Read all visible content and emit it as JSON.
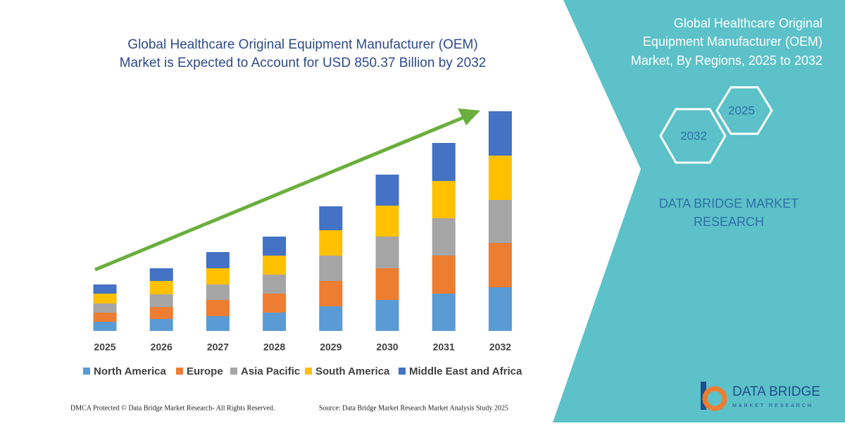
{
  "chart_data": {
    "type": "stacked_bar",
    "title": [
      "Global Healthcare Original Equipment Manufacturer (OEM)",
      "Market is Expected to Account for USD 850.37 Billion by 2032"
    ],
    "categories": [
      "2025",
      "2026",
      "2027",
      "2028",
      "2029",
      "2030",
      "2031",
      "2032"
    ],
    "series": [
      {
        "name": "North America",
        "color": "#5b9bd5",
        "values": [
          13,
          17,
          21,
          26,
          35,
          44,
          53,
          62
        ]
      },
      {
        "name": "Europe",
        "color": "#ed7d31",
        "values": [
          13,
          17,
          23,
          27,
          36,
          45,
          54,
          63
        ]
      },
      {
        "name": "Asia Pacific",
        "color": "#a5a5a5",
        "values": [
          13,
          18,
          22,
          27,
          36,
          45,
          53,
          61
        ]
      },
      {
        "name": "South America",
        "color": "#ffc000",
        "values": [
          14,
          19,
          23,
          27,
          36,
          44,
          53,
          63
        ]
      },
      {
        "name": "Middle East and Africa",
        "color": "#4472c4",
        "values": [
          13,
          18,
          23,
          27,
          34,
          44,
          54,
          63
        ]
      }
    ],
    "ylim": [
      0,
      320
    ]
  },
  "panel": {
    "title": [
      "Global Healthcare Original",
      "Equipment Manufacturer (OEM)",
      "Market, By Regions, 2025 to 2032"
    ],
    "hex_start": "2025",
    "hex_end": "2032",
    "brand": [
      "DATA BRIDGE MARKET",
      "RESEARCH"
    ]
  },
  "logo": {
    "name": "DATA BRIDGE",
    "tagline": "MARKET RESEARCH"
  },
  "footer": {
    "left": "DMCA Protected © Data Bridge Market Research-  All Rights Reserved.",
    "right": "Source: Data Bridge Market Research  Market Analysis Study 2025"
  }
}
